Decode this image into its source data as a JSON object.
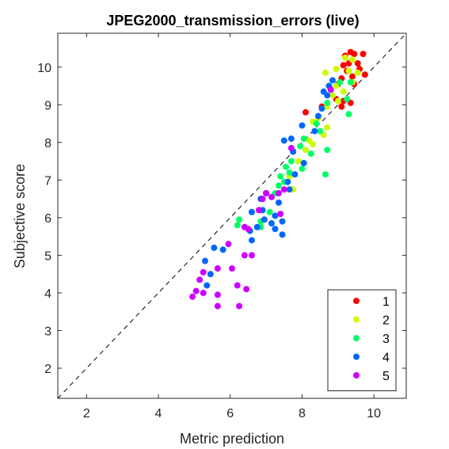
{
  "chart_data": {
    "type": "scatter",
    "title": "JPEG2000_transmission_errors (live)",
    "xlabel": "Metric prediction",
    "ylabel": "Subjective score",
    "xlim": [
      1.2,
      10.9
    ],
    "ylim": [
      1.2,
      10.9
    ],
    "xticks": [
      2,
      4,
      6,
      8,
      10
    ],
    "yticks": [
      2,
      3,
      4,
      5,
      6,
      7,
      8,
      9,
      10
    ],
    "diagonal": true,
    "legend_position": "bottom-right",
    "series": [
      {
        "name": "1",
        "color": "#ff0000",
        "points": [
          [
            9.2,
            10.3
          ],
          [
            9.35,
            10.4
          ],
          [
            9.45,
            10.35
          ],
          [
            9.7,
            10.35
          ],
          [
            9.3,
            10.1
          ],
          [
            9.15,
            10.05
          ],
          [
            9.55,
            10.1
          ],
          [
            9.25,
            9.9
          ],
          [
            9.6,
            9.95
          ],
          [
            9.4,
            9.75
          ],
          [
            9.75,
            9.8
          ],
          [
            9.1,
            9.7
          ],
          [
            9.0,
            9.55
          ],
          [
            9.45,
            9.55
          ],
          [
            9.15,
            9.1
          ],
          [
            9.35,
            9.05
          ],
          [
            8.95,
            9.15
          ],
          [
            9.1,
            8.95
          ],
          [
            8.7,
            8.95
          ],
          [
            8.1,
            8.8
          ],
          [
            8.55,
            8.95
          ]
        ]
      },
      {
        "name": "2",
        "color": "#ccff00",
        "points": [
          [
            9.2,
            10.25
          ],
          [
            9.4,
            10.2
          ],
          [
            8.95,
            9.95
          ],
          [
            8.65,
            9.85
          ],
          [
            9.3,
            9.9
          ],
          [
            9.55,
            9.85
          ],
          [
            9.4,
            9.6
          ],
          [
            8.95,
            9.5
          ],
          [
            9.15,
            9.35
          ],
          [
            8.85,
            9.25
          ],
          [
            9.0,
            9.1
          ],
          [
            8.7,
            8.95
          ],
          [
            8.45,
            8.65
          ],
          [
            8.3,
            8.55
          ],
          [
            8.7,
            8.4
          ],
          [
            8.6,
            8.2
          ],
          [
            8.3,
            7.95
          ],
          [
            8.1,
            7.8
          ],
          [
            7.9,
            7.5
          ],
          [
            7.75,
            6.75
          ],
          [
            8.2,
            8.05
          ],
          [
            7.65,
            7.1
          ]
        ]
      },
      {
        "name": "3",
        "color": "#00ff66",
        "points": [
          [
            9.05,
            9.6
          ],
          [
            9.35,
            9.6
          ],
          [
            8.75,
            9.5
          ],
          [
            9.25,
            9.15
          ],
          [
            8.7,
            9.05
          ],
          [
            9.3,
            8.75
          ],
          [
            8.4,
            8.5
          ],
          [
            8.5,
            8.3
          ],
          [
            8.05,
            8.1
          ],
          [
            7.95,
            7.9
          ],
          [
            8.7,
            7.8
          ],
          [
            8.25,
            7.7
          ],
          [
            7.7,
            7.5
          ],
          [
            8.0,
            7.3
          ],
          [
            7.65,
            7.2
          ],
          [
            7.4,
            7.1
          ],
          [
            8.65,
            7.15
          ],
          [
            7.55,
            7.35
          ],
          [
            7.35,
            6.85
          ],
          [
            7.25,
            6.65
          ],
          [
            7.5,
            6.95
          ],
          [
            6.25,
            5.95
          ],
          [
            6.2,
            5.8
          ],
          [
            6.85,
            5.9
          ],
          [
            7.1,
            6.15
          ],
          [
            6.85,
            5.75
          ]
        ]
      },
      {
        "name": "4",
        "color": "#0066ff",
        "points": [
          [
            8.85,
            9.65
          ],
          [
            8.75,
            9.5
          ],
          [
            8.6,
            9.35
          ],
          [
            8.7,
            9.25
          ],
          [
            8.55,
            8.9
          ],
          [
            8.45,
            8.7
          ],
          [
            8.35,
            8.3
          ],
          [
            8.0,
            8.45
          ],
          [
            7.5,
            8.05
          ],
          [
            7.7,
            8.1
          ],
          [
            7.75,
            7.75
          ],
          [
            8.05,
            7.45
          ],
          [
            7.8,
            7.15
          ],
          [
            7.6,
            6.95
          ],
          [
            7.65,
            6.75
          ],
          [
            7.0,
            6.65
          ],
          [
            6.85,
            6.5
          ],
          [
            7.35,
            6.4
          ],
          [
            6.9,
            6.2
          ],
          [
            7.25,
            6.05
          ],
          [
            7.45,
            5.9
          ],
          [
            6.6,
            6.15
          ],
          [
            6.95,
            5.95
          ],
          [
            7.15,
            5.85
          ],
          [
            6.55,
            5.65
          ],
          [
            7.25,
            5.7
          ],
          [
            6.75,
            5.75
          ],
          [
            6.6,
            5.4
          ],
          [
            7.45,
            5.55
          ],
          [
            5.55,
            5.2
          ],
          [
            5.8,
            5.15
          ],
          [
            5.3,
            4.85
          ],
          [
            5.45,
            4.5
          ],
          [
            5.35,
            4.2
          ]
        ]
      },
      {
        "name": "5",
        "color": "#cc00ff",
        "points": [
          [
            8.8,
            9.4
          ],
          [
            7.7,
            7.85
          ],
          [
            7.5,
            6.75
          ],
          [
            7.35,
            6.65
          ],
          [
            7.15,
            6.55
          ],
          [
            7.0,
            6.65
          ],
          [
            6.9,
            6.5
          ],
          [
            7.4,
            6.1
          ],
          [
            6.8,
            6.2
          ],
          [
            6.5,
            5.7
          ],
          [
            6.4,
            5.75
          ],
          [
            5.95,
            5.3
          ],
          [
            6.4,
            5.0
          ],
          [
            6.6,
            5.0
          ],
          [
            6.05,
            4.65
          ],
          [
            5.65,
            4.65
          ],
          [
            5.25,
            4.55
          ],
          [
            5.15,
            4.35
          ],
          [
            5.05,
            4.05
          ],
          [
            5.25,
            4.0
          ],
          [
            4.95,
            3.9
          ],
          [
            5.65,
            3.95
          ],
          [
            6.45,
            4.1
          ],
          [
            6.2,
            4.2
          ],
          [
            5.65,
            3.65
          ],
          [
            6.25,
            3.65
          ]
        ]
      }
    ]
  }
}
